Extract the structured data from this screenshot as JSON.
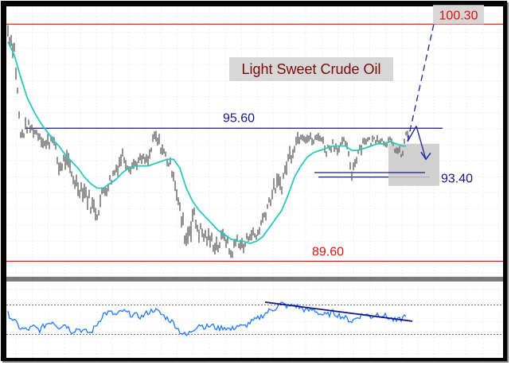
{
  "chart_data": {
    "type": "line",
    "title": "Light Sweet Crude Oil",
    "price_panel": {
      "ylim": [
        88.9,
        101.1
      ],
      "levels": [
        {
          "label": "100.30",
          "value": 100.3,
          "color": "#e01010"
        },
        {
          "label": "95.60",
          "value": 95.6,
          "color": "#16188a"
        },
        {
          "label": "89.60",
          "value": 89.6,
          "color": "#e01010"
        },
        {
          "label": "93.40",
          "value": 93.4,
          "color": "#16188a"
        }
      ],
      "series": [
        {
          "kind": "price-bars",
          "color": "#666666",
          "x": [
            0,
            8,
            16,
            24,
            32,
            40,
            48,
            56,
            64,
            72,
            80,
            88,
            96,
            104,
            112,
            120,
            128,
            136,
            144,
            152,
            160,
            168,
            176,
            184,
            192,
            200,
            208,
            216,
            224,
            232,
            240,
            248,
            256,
            264,
            272,
            280,
            288,
            296,
            304,
            312,
            320,
            328,
            336,
            344,
            352,
            360,
            368,
            376,
            384,
            392,
            400,
            408,
            416,
            424,
            432,
            440,
            448,
            456,
            464,
            472,
            480,
            488,
            496,
            500
          ],
          "y": [
            100.0,
            99.2,
            95.2,
            95.7,
            95.5,
            95.3,
            94.8,
            95.3,
            93.8,
            94.2,
            93.5,
            93.0,
            92.8,
            92.2,
            91.8,
            92.8,
            93.2,
            93.8,
            94.4,
            93.9,
            94.0,
            94.2,
            94.1,
            95.2,
            94.8,
            94.2,
            93.6,
            91.8,
            90.6,
            91.7,
            91.0,
            90.7,
            90.5,
            90.3,
            90.8,
            89.9,
            90.6,
            90.2,
            90.9,
            90.7,
            91.5,
            92.3,
            93.0,
            93.1,
            94.2,
            94.9,
            95.4,
            95.2,
            95.0,
            95.3,
            94.6,
            94.9,
            94.7,
            95.0,
            93.6,
            94.6,
            95.1,
            95.0,
            95.2,
            95.0,
            95.0,
            94.6,
            94.4,
            95.4
          ],
          "range": [
            0.9,
            0.8,
            0.7,
            0.6,
            0.5,
            0.6,
            0.8,
            0.6,
            0.8,
            0.9,
            0.8,
            0.8,
            0.9,
            0.8,
            0.8,
            0.8,
            0.7,
            0.7,
            0.6,
            0.6,
            0.5,
            0.5,
            0.6,
            0.7,
            0.6,
            0.6,
            0.7,
            1.0,
            1.4,
            1.0,
            0.9,
            0.7,
            0.8,
            0.7,
            0.6,
            0.6,
            0.6,
            0.6,
            0.6,
            0.6,
            0.7,
            0.7,
            0.8,
            0.8,
            0.9,
            0.7,
            0.6,
            0.5,
            0.5,
            0.5,
            0.5,
            0.5,
            0.5,
            0.5,
            0.6,
            0.6,
            0.4,
            0.4,
            0.4,
            0.4,
            0.4,
            0.4,
            0.5,
            0.4
          ]
        },
        {
          "kind": "moving-average",
          "color": "#28c8c0",
          "x": [
            0,
            8,
            16,
            24,
            32,
            40,
            48,
            56,
            64,
            72,
            80,
            88,
            96,
            104,
            112,
            120,
            128,
            136,
            144,
            152,
            160,
            168,
            176,
            184,
            192,
            200,
            208,
            216,
            224,
            232,
            240,
            248,
            256,
            264,
            272,
            280,
            288,
            296,
            304,
            312,
            320,
            328,
            336,
            344,
            352,
            360,
            368,
            376,
            384,
            392,
            400,
            408,
            416,
            424,
            432,
            440,
            448,
            456,
            464,
            472,
            480,
            488,
            496,
            500
          ],
          "y": [
            99.5,
            98.9,
            97.9,
            97.0,
            96.4,
            95.9,
            95.5,
            95.1,
            94.8,
            94.4,
            94.1,
            93.8,
            93.4,
            93.1,
            92.9,
            92.9,
            93.1,
            93.3,
            93.6,
            93.8,
            93.9,
            93.9,
            93.9,
            94.0,
            94.1,
            94.2,
            94.2,
            93.8,
            92.9,
            92.3,
            91.9,
            91.6,
            91.3,
            91.0,
            90.8,
            90.6,
            90.5,
            90.5,
            90.4,
            90.5,
            90.7,
            91.1,
            91.5,
            91.9,
            92.6,
            93.4,
            93.9,
            94.3,
            94.5,
            94.6,
            94.7,
            94.8,
            94.8,
            94.8,
            94.6,
            94.6,
            94.7,
            94.8,
            94.9,
            94.9,
            95.0,
            94.9,
            94.8,
            94.8
          ]
        }
      ],
      "projections": [
        {
          "style": "dashed",
          "from": [
            502,
            95.0
          ],
          "to": [
            535,
            100.3
          ]
        },
        {
          "style": "solid",
          "from": [
            502,
            95.0
          ],
          "to": [
            513,
            95.7
          ]
        },
        {
          "style": "solid",
          "from": [
            513,
            95.7
          ],
          "to": [
            525,
            94.2
          ]
        }
      ],
      "highlight_box": {
        "x": [
          478,
          542
        ],
        "y": [
          93.0,
          94.9
        ]
      },
      "support_segment": {
        "x": [
          385,
          524
        ],
        "y": 93.6
      }
    },
    "oscillator_panel": {
      "levels": [
        70,
        30
      ],
      "series": {
        "kind": "oscillator",
        "color": "#1e78ff",
        "x": [
          0,
          8,
          16,
          24,
          32,
          40,
          48,
          56,
          64,
          72,
          80,
          88,
          96,
          104,
          112,
          120,
          128,
          136,
          144,
          152,
          160,
          168,
          176,
          184,
          192,
          200,
          208,
          216,
          224,
          232,
          240,
          248,
          256,
          264,
          272,
          280,
          288,
          296,
          304,
          312,
          320,
          328,
          336,
          344,
          352,
          360,
          368,
          376,
          384,
          392,
          400,
          408,
          416,
          424,
          432,
          440,
          448,
          456,
          464,
          472,
          480,
          488,
          496,
          500
        ],
        "y": [
          58,
          48,
          38,
          36,
          40,
          36,
          44,
          48,
          40,
          44,
          34,
          38,
          34,
          32,
          44,
          58,
          60,
          56,
          62,
          58,
          56,
          54,
          60,
          64,
          58,
          52,
          46,
          34,
          28,
          36,
          44,
          40,
          42,
          38,
          40,
          36,
          42,
          40,
          46,
          50,
          56,
          62,
          66,
          72,
          68,
          70,
          66,
          62,
          64,
          58,
          56,
          60,
          56,
          52,
          48,
          54,
          58,
          54,
          58,
          56,
          52,
          48,
          52,
          58
        ]
      },
      "trendline": {
        "from": [
          323,
          74
        ],
        "to": [
          508,
          48
        ]
      }
    }
  }
}
